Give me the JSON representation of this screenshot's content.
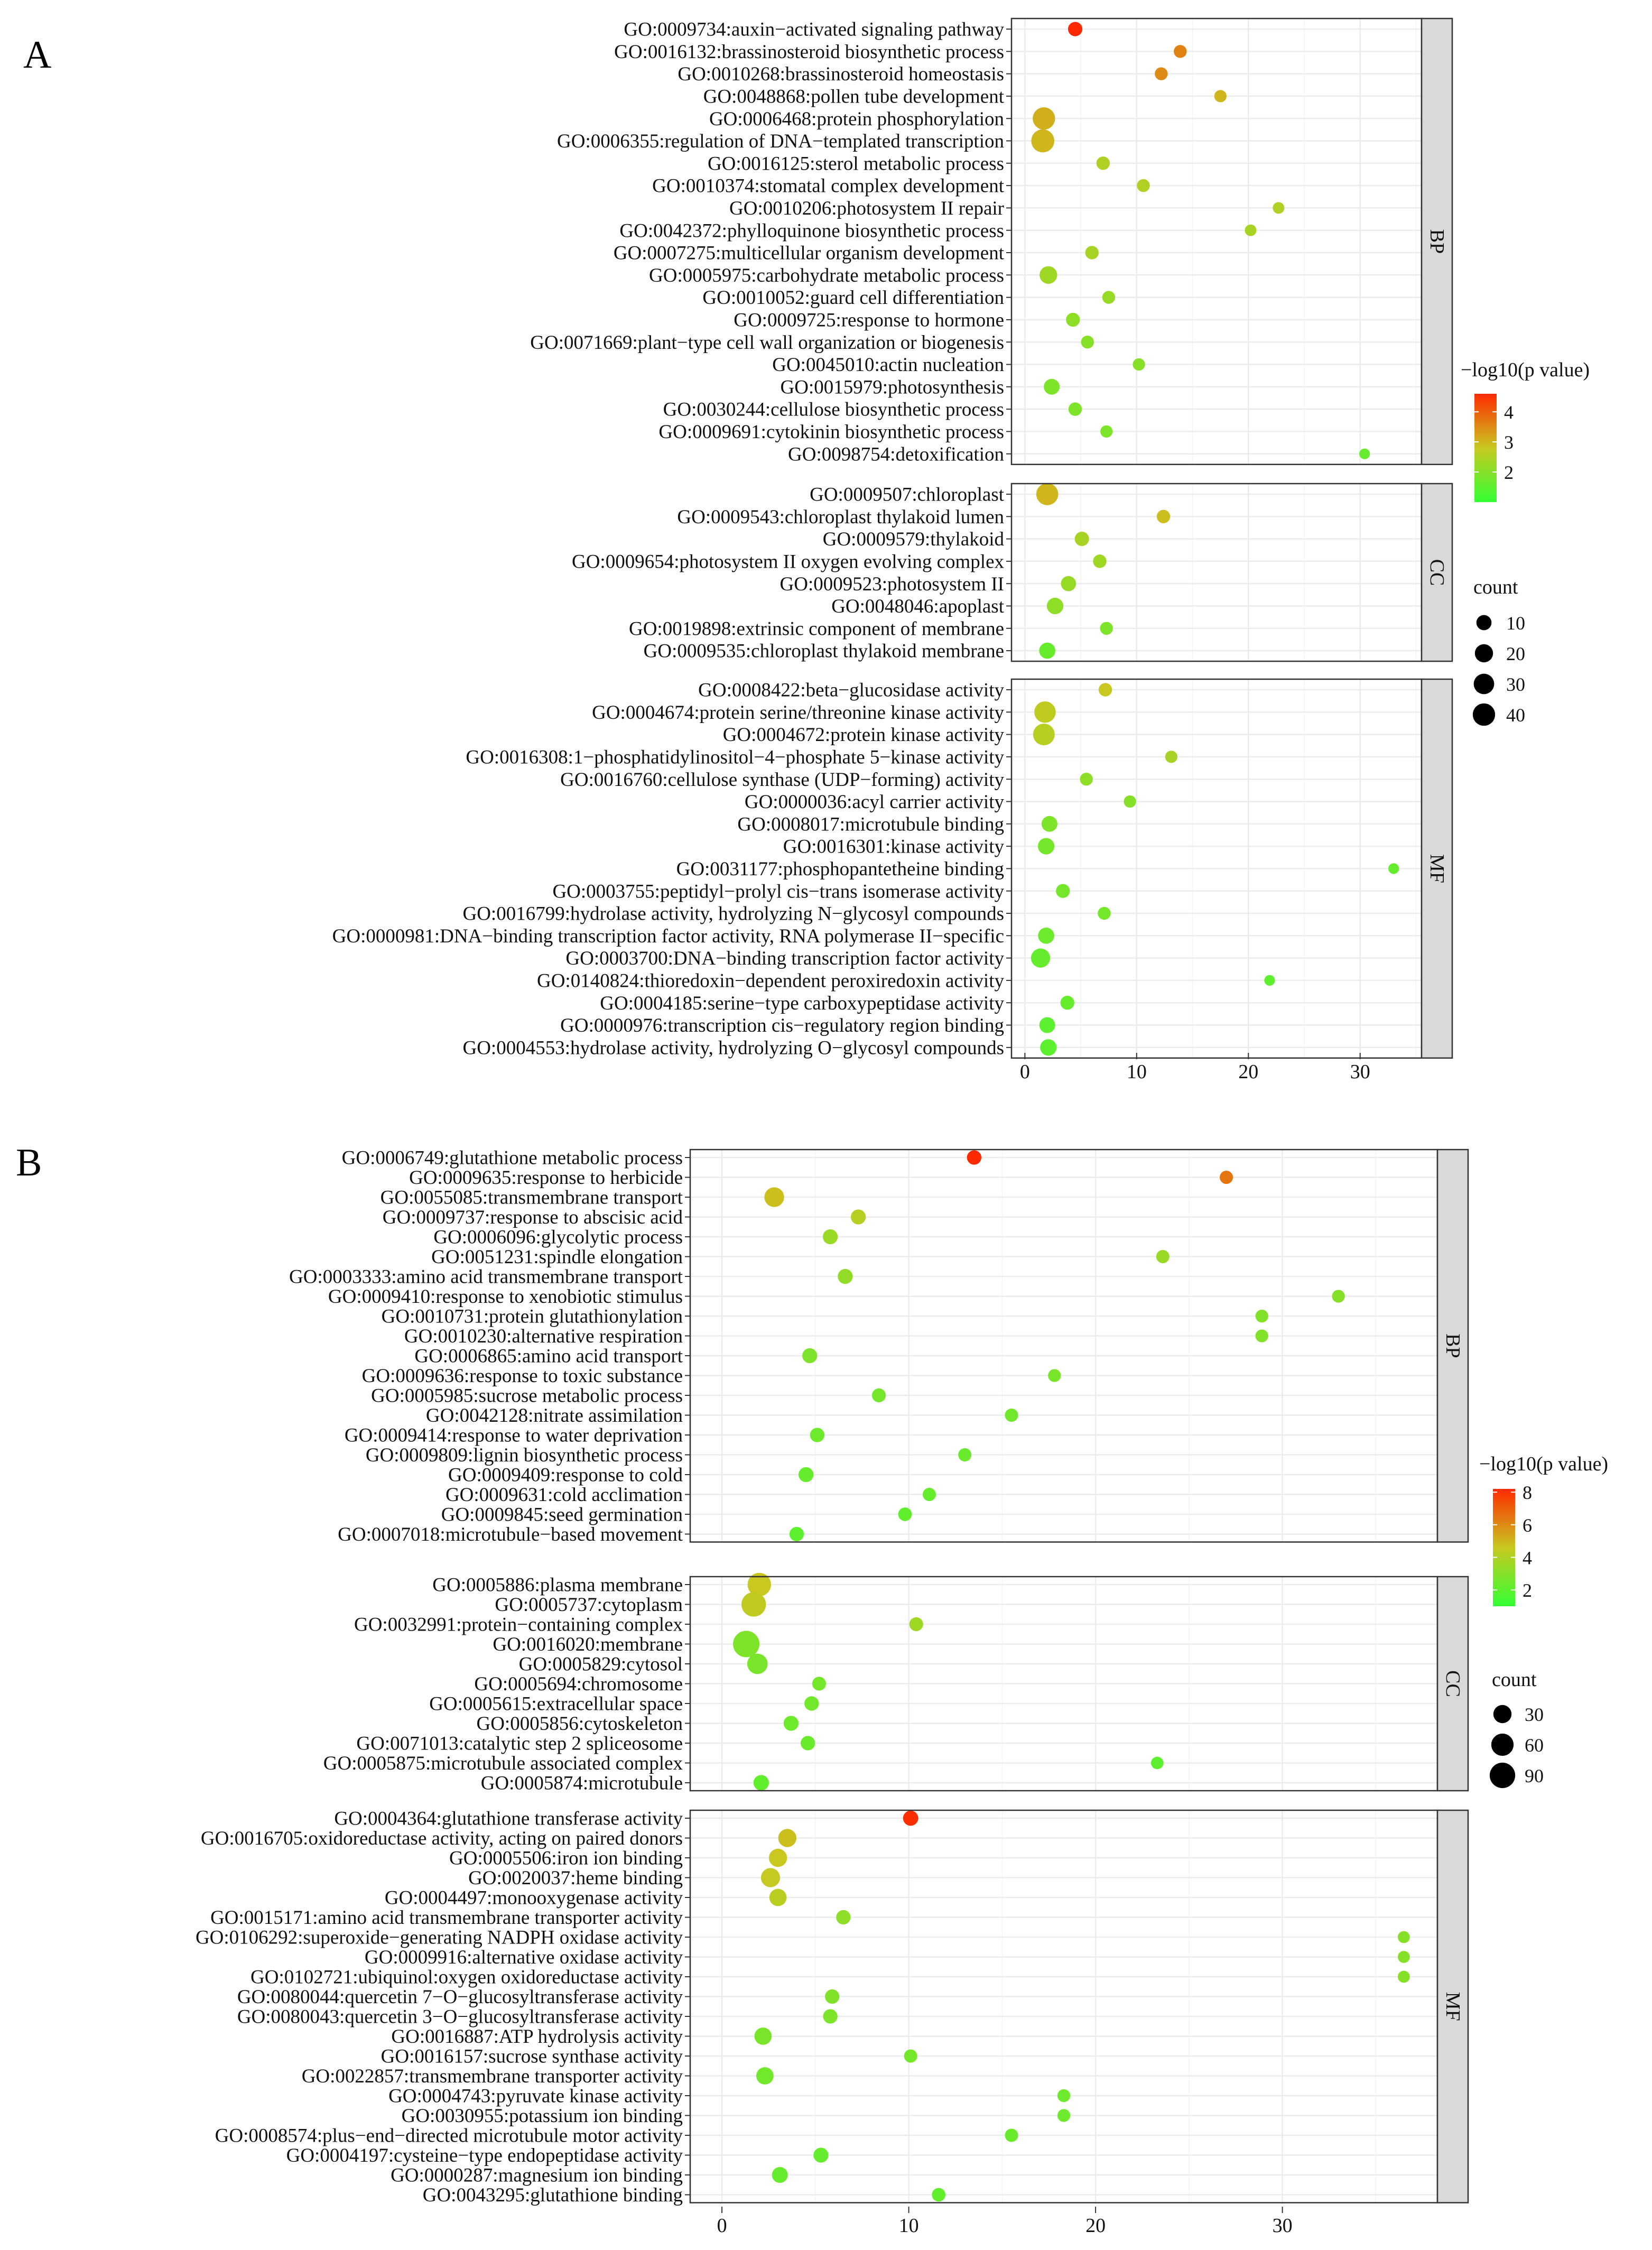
{
  "panels": {
    "a": "A",
    "b": "B"
  },
  "colors": {
    "low": "#33ff33",
    "mid": "#c8c820",
    "high": "#ff2a00",
    "strip": "#d9d9d9",
    "grid": "#ececec"
  },
  "chart_data": [
    {
      "type": "scatter",
      "panel": "A",
      "xlabel": "",
      "xlim": [
        -1.2,
        35.5
      ],
      "xticks": [
        0,
        10,
        20,
        30
      ],
      "color_legend_title": "−log10(p value)",
      "color_range": [
        1,
        4.6
      ],
      "color_ticks": [
        2,
        3,
        4
      ],
      "size_legend_title": "count",
      "size_range": [
        1,
        45
      ],
      "size_ticks": [
        10,
        20,
        30,
        40
      ],
      "facets": [
        {
          "name": "BP",
          "terms": [
            {
              "label": "GO:0009734:auxin−activated signaling pathway",
              "x": 4.5,
              "p": 4.6,
              "count": 8
            },
            {
              "label": "GO:0016132:brassinosteroid biosynthetic process",
              "x": 13.9,
              "p": 3.6,
              "count": 5
            },
            {
              "label": "GO:0010268:brassinosteroid homeostasis",
              "x": 12.2,
              "p": 3.5,
              "count": 5
            },
            {
              "label": "GO:0048868:pollen tube development",
              "x": 17.5,
              "p": 3.0,
              "count": 4
            },
            {
              "label": "GO:0006468:protein phosphorylation",
              "x": 1.7,
              "p": 3.1,
              "count": 40
            },
            {
              "label": "GO:0006355:regulation of DNA−templated transcription",
              "x": 1.6,
              "p": 3.0,
              "count": 44
            },
            {
              "label": "GO:0016125:sterol metabolic process",
              "x": 7.0,
              "p": 2.5,
              "count": 6
            },
            {
              "label": "GO:0010374:stomatal complex development",
              "x": 10.6,
              "p": 2.5,
              "count": 5
            },
            {
              "label": "GO:0010206:photosystem II repair",
              "x": 22.7,
              "p": 2.5,
              "count": 3
            },
            {
              "label": "GO:0042372:phylloquinone biosynthetic process",
              "x": 20.2,
              "p": 2.4,
              "count": 3
            },
            {
              "label": "GO:0007275:multicellular organism development",
              "x": 6.0,
              "p": 2.4,
              "count": 6
            },
            {
              "label": "GO:0005975:carbohydrate metabolic process",
              "x": 2.1,
              "p": 2.3,
              "count": 18
            },
            {
              "label": "GO:0010052:guard cell differentiation",
              "x": 7.5,
              "p": 2.2,
              "count": 5
            },
            {
              "label": "GO:0009725:response to hormone",
              "x": 4.3,
              "p": 2.1,
              "count": 7
            },
            {
              "label": "GO:0071669:plant−type cell wall organization or biogenesis",
              "x": 5.6,
              "p": 2.0,
              "count": 5
            },
            {
              "label": "GO:0045010:actin nucleation",
              "x": 10.2,
              "p": 2.0,
              "count": 4
            },
            {
              "label": "GO:0015979:photosynthesis",
              "x": 2.4,
              "p": 1.9,
              "count": 12
            },
            {
              "label": "GO:0030244:cellulose biosynthetic process",
              "x": 4.5,
              "p": 1.9,
              "count": 6
            },
            {
              "label": "GO:0009691:cytokinin biosynthetic process",
              "x": 7.3,
              "p": 1.9,
              "count": 4
            },
            {
              "label": "GO:0098754:detoxification",
              "x": 30.4,
              "p": 1.6,
              "count": 2
            }
          ]
        },
        {
          "name": "CC",
          "terms": [
            {
              "label": "GO:0009507:chloroplast",
              "x": 2.0,
              "p": 3.0,
              "count": 38
            },
            {
              "label": "GO:0009543:chloroplast thylakoid lumen",
              "x": 12.4,
              "p": 2.9,
              "count": 6
            },
            {
              "label": "GO:0009579:thylakoid",
              "x": 5.1,
              "p": 2.4,
              "count": 8
            },
            {
              "label": "GO:0009654:photosystem II oxygen evolving complex",
              "x": 6.7,
              "p": 2.3,
              "count": 6
            },
            {
              "label": "GO:0009523:photosystem II",
              "x": 3.9,
              "p": 2.2,
              "count": 10
            },
            {
              "label": "GO:0048046:apoplast",
              "x": 2.7,
              "p": 2.1,
              "count": 14
            },
            {
              "label": "GO:0019898:extrinsic component of membrane",
              "x": 7.3,
              "p": 1.9,
              "count": 5
            },
            {
              "label": "GO:0009535:chloroplast thylakoid membrane",
              "x": 2.0,
              "p": 1.6,
              "count": 13
            }
          ]
        },
        {
          "name": "MF",
          "terms": [
            {
              "label": "GO:0008422:beta−glucosidase activity",
              "x": 7.2,
              "p": 2.8,
              "count": 6
            },
            {
              "label": "GO:0004674:protein serine/threonine kinase activity",
              "x": 1.8,
              "p": 2.7,
              "count": 35
            },
            {
              "label": "GO:0004672:protein kinase activity",
              "x": 1.7,
              "p": 2.6,
              "count": 36
            },
            {
              "label": "GO:0016308:1−phosphatidylinositol−4−phosphate 5−kinase activity",
              "x": 13.1,
              "p": 2.4,
              "count": 4
            },
            {
              "label": "GO:0016760:cellulose synthase (UDP−forming) activity",
              "x": 5.5,
              "p": 2.1,
              "count": 5
            },
            {
              "label": "GO:0000036:acyl carrier activity",
              "x": 9.4,
              "p": 2.0,
              "count": 4
            },
            {
              "label": "GO:0008017:microtubule binding",
              "x": 2.2,
              "p": 1.9,
              "count": 12
            },
            {
              "label": "GO:0016301:kinase activity",
              "x": 1.9,
              "p": 1.8,
              "count": 14
            },
            {
              "label": "GO:0031177:phosphopantetheine binding",
              "x": 33.0,
              "p": 1.6,
              "count": 2
            },
            {
              "label": "GO:0003755:peptidyl−prolyl cis−trans isomerase activity",
              "x": 3.4,
              "p": 1.8,
              "count": 7
            },
            {
              "label": "GO:0016799:hydrolase activity, hydrolyzing N−glycosyl compounds",
              "x": 7.1,
              "p": 1.8,
              "count": 5
            },
            {
              "label": "GO:0000981:DNA−binding transcription factor activity, RNA polymerase II−specific",
              "x": 1.9,
              "p": 1.7,
              "count": 13
            },
            {
              "label": "GO:0003700:DNA−binding transcription factor activity",
              "x": 1.4,
              "p": 1.6,
              "count": 24
            },
            {
              "label": "GO:0140824:thioredoxin−dependent peroxiredoxin activity",
              "x": 21.9,
              "p": 1.5,
              "count": 2
            },
            {
              "label": "GO:0004185:serine−type carboxypeptidase activity",
              "x": 3.8,
              "p": 1.6,
              "count": 7
            },
            {
              "label": "GO:0000976:transcription cis−regulatory region binding",
              "x": 2.0,
              "p": 1.5,
              "count": 12
            },
            {
              "label": "GO:0004553:hydrolase activity, hydrolyzing O−glycosyl compounds",
              "x": 2.1,
              "p": 1.5,
              "count": 14
            }
          ]
        }
      ]
    },
    {
      "type": "scatter",
      "panel": "B",
      "xlabel": "",
      "xlim": [
        -1.7,
        38.3
      ],
      "xticks": [
        0,
        10,
        20,
        30
      ],
      "color_legend_title": "−log10(p value)",
      "color_range": [
        1,
        8.2
      ],
      "color_ticks": [
        2,
        4,
        6,
        8
      ],
      "size_legend_title": "count",
      "size_range": [
        1,
        100
      ],
      "size_ticks": [
        30,
        60,
        90
      ],
      "facets": [
        {
          "name": "BP",
          "terms": [
            {
              "label": "GO:0006749:glutathione metabolic process",
              "x": 13.5,
              "p": 8.2,
              "count": 12
            },
            {
              "label": "GO:0009635:response to herbicide",
              "x": 27.0,
              "p": 6.5,
              "count": 8
            },
            {
              "label": "GO:0055085:transmembrane transport",
              "x": 2.8,
              "p": 4.8,
              "count": 40
            },
            {
              "label": "GO:0009737:response to abscisic acid",
              "x": 7.3,
              "p": 4.2,
              "count": 14
            },
            {
              "label": "GO:0006096:glycolytic process",
              "x": 5.8,
              "p": 3.5,
              "count": 14
            },
            {
              "label": "GO:0051231:spindle elongation",
              "x": 23.6,
              "p": 3.5,
              "count": 8
            },
            {
              "label": "GO:0003333:amino acid transmembrane transport",
              "x": 6.6,
              "p": 3.3,
              "count": 14
            },
            {
              "label": "GO:0009410:response to xenobiotic stimulus",
              "x": 33.0,
              "p": 3.0,
              "count": 7
            },
            {
              "label": "GO:0010731:protein glutathionylation",
              "x": 28.9,
              "p": 2.9,
              "count": 7
            },
            {
              "label": "GO:0010230:alternative respiration",
              "x": 28.9,
              "p": 2.9,
              "count": 7
            },
            {
              "label": "GO:0006865:amino acid transport",
              "x": 4.7,
              "p": 2.8,
              "count": 14
            },
            {
              "label": "GO:0009636:response to toxic substance",
              "x": 17.8,
              "p": 2.7,
              "count": 7
            },
            {
              "label": "GO:0005985:sucrose metabolic process",
              "x": 8.4,
              "p": 2.6,
              "count": 10
            },
            {
              "label": "GO:0042128:nitrate assimilation",
              "x": 15.5,
              "p": 2.5,
              "count": 8
            },
            {
              "label": "GO:0009414:response to water deprivation",
              "x": 5.1,
              "p": 2.4,
              "count": 12
            },
            {
              "label": "GO:0009809:lignin biosynthetic process",
              "x": 13.0,
              "p": 2.3,
              "count": 8
            },
            {
              "label": "GO:0009409:response to cold",
              "x": 4.5,
              "p": 2.2,
              "count": 14
            },
            {
              "label": "GO:0009631:cold acclimation",
              "x": 11.1,
              "p": 2.2,
              "count": 8
            },
            {
              "label": "GO:0009845:seed germination",
              "x": 9.8,
              "p": 2.1,
              "count": 9
            },
            {
              "label": "GO:0007018:microtubule−based movement",
              "x": 4.0,
              "p": 2.0,
              "count": 12
            }
          ]
        },
        {
          "name": "CC",
          "terms": [
            {
              "label": "GO:0005886:plasma membrane",
              "x": 2.0,
              "p": 4.6,
              "count": 70
            },
            {
              "label": "GO:0005737:cytoplasm",
              "x": 1.7,
              "p": 4.4,
              "count": 80
            },
            {
              "label": "GO:0032991:protein−containing complex",
              "x": 10.4,
              "p": 3.6,
              "count": 10
            },
            {
              "label": "GO:0016020:membrane",
              "x": 1.3,
              "p": 2.8,
              "count": 100
            },
            {
              "label": "GO:0005829:cytosol",
              "x": 1.9,
              "p": 2.7,
              "count": 45
            },
            {
              "label": "GO:0005694:chromosome",
              "x": 5.2,
              "p": 2.6,
              "count": 10
            },
            {
              "label": "GO:0005615:extracellular space",
              "x": 4.8,
              "p": 2.5,
              "count": 12
            },
            {
              "label": "GO:0005856:cytoskeleton",
              "x": 3.7,
              "p": 2.4,
              "count": 14
            },
            {
              "label": "GO:0071013:catalytic step 2 spliceosome",
              "x": 4.6,
              "p": 2.3,
              "count": 12
            },
            {
              "label": "GO:0005875:microtubule associated complex",
              "x": 23.3,
              "p": 2.0,
              "count": 6
            },
            {
              "label": "GO:0005874:microtubule",
              "x": 2.1,
              "p": 2.1,
              "count": 16
            }
          ]
        },
        {
          "name": "MF",
          "terms": [
            {
              "label": "GO:0004364:glutathione transferase activity",
              "x": 10.1,
              "p": 8.1,
              "count": 15
            },
            {
              "label": "GO:0016705:oxidoreductase activity, acting on paired donors",
              "x": 3.5,
              "p": 4.8,
              "count": 30
            },
            {
              "label": "GO:0005506:iron ion binding",
              "x": 3.0,
              "p": 4.6,
              "count": 30
            },
            {
              "label": "GO:0020037:heme binding",
              "x": 2.6,
              "p": 4.5,
              "count": 36
            },
            {
              "label": "GO:0004497:monooxygenase activity",
              "x": 3.0,
              "p": 4.3,
              "count": 25
            },
            {
              "label": "GO:0015171:amino acid transmembrane transporter activity",
              "x": 6.5,
              "p": 3.2,
              "count": 12
            },
            {
              "label": "GO:0106292:superoxide−generating NADPH oxidase activity",
              "x": 36.5,
              "p": 3.0,
              "count": 5
            },
            {
              "label": "GO:0009916:alternative oxidase activity",
              "x": 36.5,
              "p": 3.0,
              "count": 5
            },
            {
              "label": "GO:0102721:ubiquinol:oxygen oxidoreductase activity",
              "x": 36.5,
              "p": 3.0,
              "count": 5
            },
            {
              "label": "GO:0080044:quercetin 7−O−glucosyltransferase activity",
              "x": 5.9,
              "p": 2.9,
              "count": 12
            },
            {
              "label": "GO:0080043:quercetin 3−O−glucosyltransferase activity",
              "x": 5.8,
              "p": 2.8,
              "count": 12
            },
            {
              "label": "GO:0016887:ATP hydrolysis activity",
              "x": 2.2,
              "p": 2.7,
              "count": 25
            },
            {
              "label": "GO:0016157:sucrose synthase activity",
              "x": 10.1,
              "p": 2.6,
              "count": 8
            },
            {
              "label": "GO:0022857:transmembrane transporter activity",
              "x": 2.3,
              "p": 2.5,
              "count": 25
            },
            {
              "label": "GO:0004743:pyruvate kinase activity",
              "x": 18.3,
              "p": 2.4,
              "count": 7
            },
            {
              "label": "GO:0030955:potassium ion binding",
              "x": 18.3,
              "p": 2.4,
              "count": 7
            },
            {
              "label": "GO:0008574:plus−end−directed microtubule motor activity",
              "x": 15.5,
              "p": 2.3,
              "count": 8
            },
            {
              "label": "GO:0004197:cysteine−type endopeptidase activity",
              "x": 5.3,
              "p": 2.2,
              "count": 14
            },
            {
              "label": "GO:0000287:magnesium ion binding",
              "x": 3.1,
              "p": 2.2,
              "count": 18
            },
            {
              "label": "GO:0043295:glutathione binding",
              "x": 11.6,
              "p": 2.1,
              "count": 9
            }
          ]
        }
      ]
    }
  ]
}
